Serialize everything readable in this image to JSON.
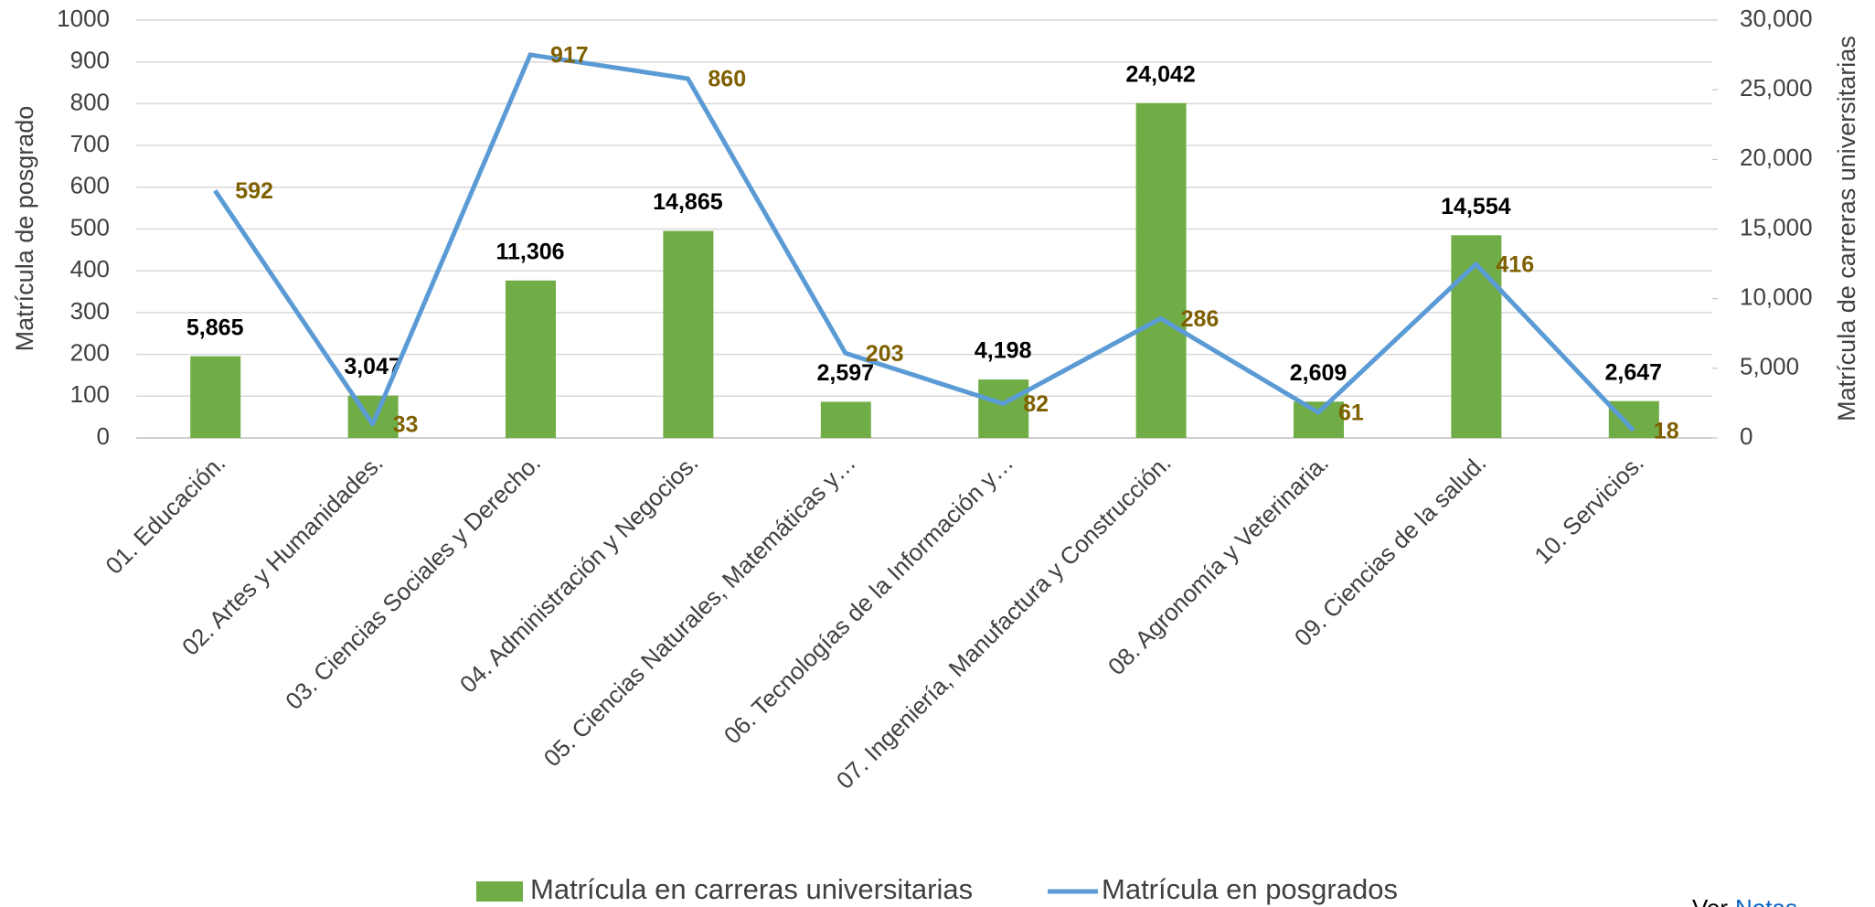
{
  "chart_data": {
    "type": "combo",
    "categories": [
      "01. Educación.",
      "02. Artes y Humanidades.",
      "03. Ciencias Sociales y Derecho.",
      "04. Administración y Negocios.",
      "05. Ciencias Naturales, Matemáticas y…",
      "06. Tecnologías de la Información y…",
      "07. Ingeniería, Manufactura y Construcción.",
      "08. Agronomía y Veterinaria.",
      "09. Ciencias de la salud.",
      "10. Servicios."
    ],
    "series": [
      {
        "name": "Matrícula en carreras universitarias",
        "type": "bar",
        "axis": "y2",
        "color": "#70ad47",
        "values": [
          5865,
          3047,
          11306,
          14865,
          2597,
          4198,
          24042,
          2609,
          14554,
          2647
        ],
        "value_labels": [
          "5,865",
          "3,047",
          "11,306",
          "14,865",
          "2,597",
          "4,198",
          "24,042",
          "2,609",
          "14,554",
          "2,647"
        ]
      },
      {
        "name": "Matrícula en posgrados",
        "type": "line",
        "color": "#5b9bd5",
        "values": [
          592,
          33,
          917,
          860,
          203,
          82,
          286,
          61,
          416,
          18
        ]
      }
    ],
    "ylabel": "Matrícula de posgrado",
    "y2label": "Matrícula de carreras universitarias",
    "ylim": [
      0,
      1000
    ],
    "yticks": [
      0,
      100,
      200,
      300,
      400,
      500,
      600,
      700,
      800,
      900,
      1000
    ],
    "y2lim": [
      0,
      30000
    ],
    "y2ticks": [
      0,
      {
        "value": 5000,
        "label": "5,000"
      },
      {
        "value": 10000,
        "label": "10,000"
      },
      {
        "value": 15000,
        "label": "15,000"
      },
      {
        "value": 20000,
        "label": "20,000"
      },
      {
        "value": 25000,
        "label": "25,000"
      },
      {
        "value": 30000,
        "label": "30,000"
      }
    ],
    "grid": true,
    "legend": "bottom",
    "note": {
      "text": "Ver",
      "link": "Notas"
    }
  }
}
